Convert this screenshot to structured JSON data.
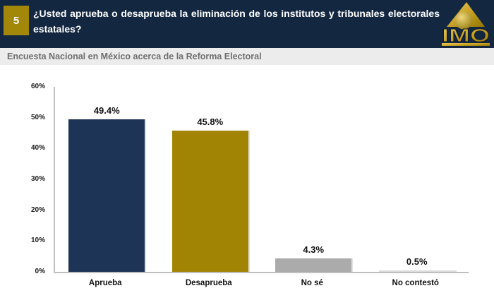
{
  "header": {
    "slide_number": "5",
    "title": "¿Usted aprueba o desaprueba la eliminación de los institutos y tribunales electorales estatales?",
    "logo_text": "IMO"
  },
  "subtitle_bar": {
    "text": "Encuesta Nacional en México acerca de la Reforma Electoral"
  },
  "colors": {
    "header_background": "#132741",
    "badge_gold": "#A3870A",
    "subtitle_background": "#ECECEC",
    "subtitle_text": "#6E6E6E",
    "axis_line": "#BFBFBF",
    "logo_gold": "#C9A227"
  },
  "chart_data": {
    "type": "bar",
    "title": "",
    "categories": [
      "Aprueba",
      "Desaprueba",
      "No sé",
      "No contestó"
    ],
    "values": [
      49.4,
      45.8,
      4.3,
      0.5
    ],
    "value_labels": [
      "49.4%",
      "45.8%",
      "4.3%",
      "0.5%"
    ],
    "bar_colors": [
      "#1E3456",
      "#A28405",
      "#ABABAB",
      "#DCDCDC"
    ],
    "ylim": [
      0,
      60
    ],
    "yticks": [
      "0%",
      "10%",
      "20%",
      "30%",
      "40%",
      "50%",
      "60%"
    ],
    "grid": false,
    "legend": false,
    "xlabel": "",
    "ylabel": ""
  }
}
